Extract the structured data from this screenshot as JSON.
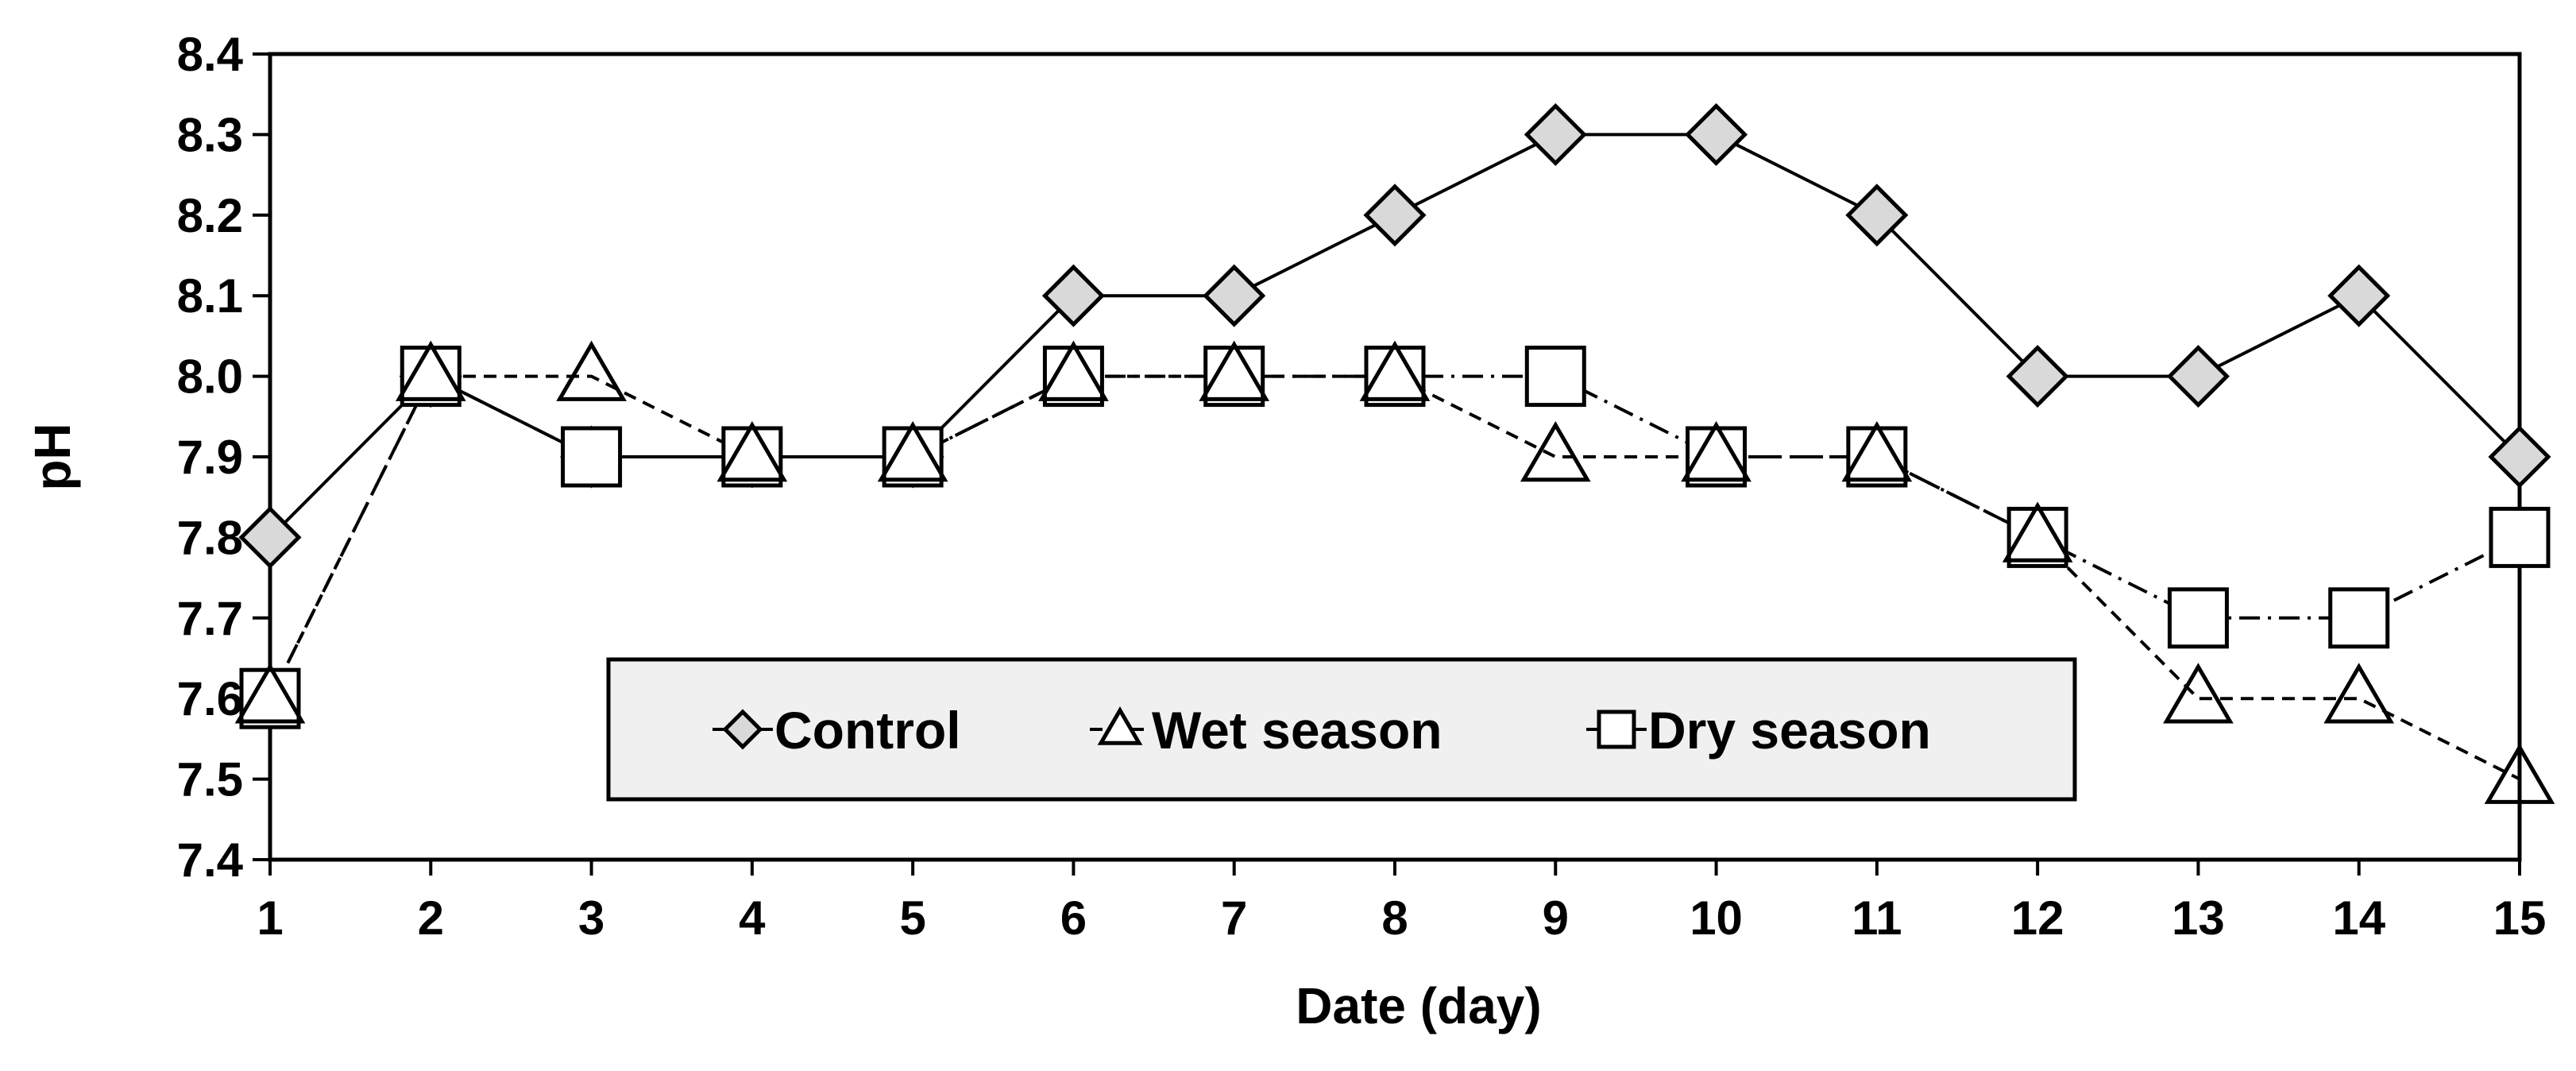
{
  "chart_data": {
    "type": "line",
    "title": "",
    "xlabel": "Date (day)",
    "ylabel": "pH",
    "categories": [
      "1",
      "2",
      "3",
      "4",
      "5",
      "6",
      "7",
      "8",
      "9",
      "10",
      "11",
      "12",
      "13",
      "14",
      "15"
    ],
    "ylim": [
      7.4,
      8.4
    ],
    "yticks": [
      "7.4",
      "7.5",
      "7.6",
      "7.7",
      "7.8",
      "7.9",
      "8.0",
      "8.1",
      "8.2",
      "8.3",
      "8.4"
    ],
    "grid": false,
    "legend_position": "bottom-center, inside",
    "series": [
      {
        "name": "Control",
        "marker": "diamond",
        "line_style": "solid",
        "marker_fill": "#d9d9d9",
        "values": [
          7.8,
          8.0,
          7.9,
          7.9,
          7.9,
          8.1,
          8.1,
          8.2,
          8.3,
          8.3,
          8.2,
          8.0,
          8.0,
          8.1,
          7.9
        ]
      },
      {
        "name": "Wet season",
        "marker": "triangle",
        "line_style": "dashed",
        "marker_fill": "#ffffff",
        "values": [
          7.6,
          8.0,
          8.0,
          7.9,
          7.9,
          8.0,
          8.0,
          8.0,
          7.9,
          7.9,
          7.9,
          7.8,
          7.6,
          7.6,
          7.5
        ]
      },
      {
        "name": "Dry season",
        "marker": "square",
        "line_style": "dashdot",
        "marker_fill": "#ffffff",
        "values": [
          7.6,
          8.0,
          7.9,
          7.9,
          7.9,
          8.0,
          8.0,
          8.0,
          8.0,
          7.9,
          7.9,
          7.8,
          7.7,
          7.7,
          7.8
        ]
      }
    ],
    "colors": {
      "stroke": "#000000",
      "legend_bg": "#f0f0f0",
      "control_fill": "#d9d9d9"
    }
  }
}
